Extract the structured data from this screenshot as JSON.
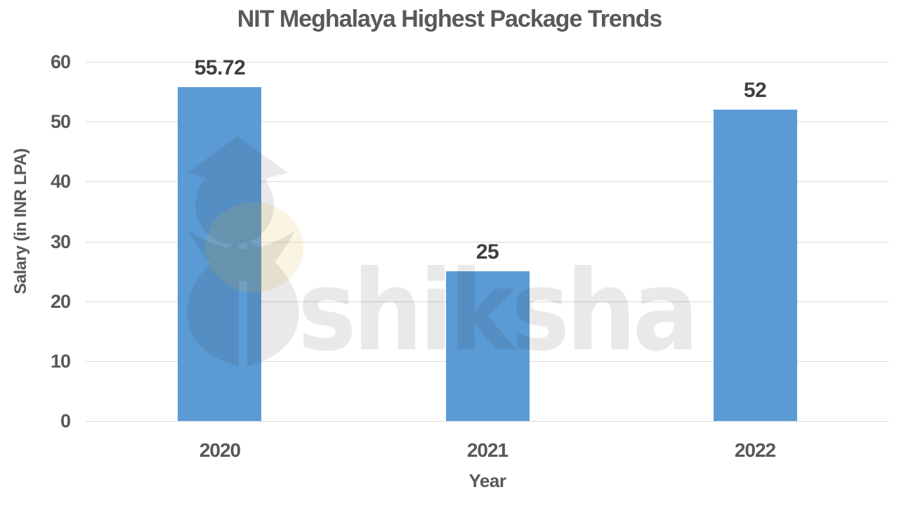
{
  "chart_data": {
    "type": "bar",
    "title": "NIT Meghalaya Highest Package Trends",
    "xlabel": "Year",
    "ylabel": "Salary (in INR LPA)",
    "categories": [
      "2020",
      "2021",
      "2022"
    ],
    "values": [
      55.72,
      25,
      52
    ],
    "value_labels": [
      "55.72",
      "25",
      "52"
    ],
    "ylim": [
      0,
      60
    ],
    "yticks": [
      0,
      10,
      20,
      30,
      40,
      50,
      60
    ],
    "grid": "horizontal",
    "legend": "none",
    "bar_color": "#5B9BD5",
    "gridline_color": "#D9D9D9",
    "title_color": "#595959",
    "tick_color": "#595959",
    "value_label_color": "#3F3F3F"
  },
  "watermark": {
    "text": "shiksha"
  }
}
